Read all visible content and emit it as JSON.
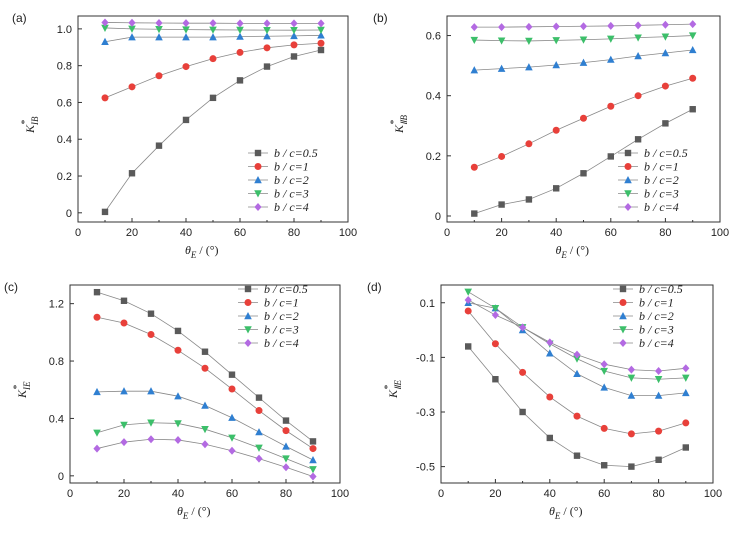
{
  "chart_data": [
    {
      "type": "line",
      "panel_label": "(a)",
      "xlabel": "θE / (°)",
      "xlabel_main": "θ",
      "xlabel_sub": "E",
      "xlabel_unit": " / (°)",
      "ylabel_main": "K",
      "ylabel_sub": "IB",
      "ylabel_sup": "*",
      "xlim": [
        0,
        100
      ],
      "ylim": [
        -0.05,
        1.07
      ],
      "xticks": [
        "0",
        "20",
        "40",
        "60",
        "80",
        "100"
      ],
      "yticks": [
        "0",
        "0.2",
        "0.4",
        "0.6",
        "0.8",
        "1.0"
      ],
      "legend_position": "bottom-right",
      "x": [
        10,
        20,
        30,
        40,
        50,
        60,
        70,
        80,
        90
      ],
      "series": [
        {
          "name": "b / c=0.5",
          "color": "#5a5a5a",
          "marker": "square",
          "values": [
            0.005,
            0.215,
            0.365,
            0.505,
            0.625,
            0.72,
            0.795,
            0.85,
            0.885
          ]
        },
        {
          "name": "b / c=1",
          "color": "#e8403a",
          "marker": "circle",
          "values": [
            0.625,
            0.685,
            0.745,
            0.795,
            0.838,
            0.872,
            0.897,
            0.913,
            0.922
          ]
        },
        {
          "name": "b / c=2",
          "color": "#2f7fd1",
          "marker": "triangle-up",
          "values": [
            0.93,
            0.955,
            0.955,
            0.955,
            0.955,
            0.958,
            0.96,
            0.962,
            0.965
          ]
        },
        {
          "name": "b / c=3",
          "color": "#3cbf6a",
          "marker": "triangle-down",
          "values": [
            1.005,
            1.0,
            0.998,
            0.996,
            0.995,
            0.994,
            0.993,
            0.993,
            0.994
          ]
        },
        {
          "name": "b / c=4",
          "color": "#b36ae2",
          "marker": "diamond",
          "values": [
            1.035,
            1.033,
            1.032,
            1.031,
            1.031,
            1.03,
            1.03,
            1.03,
            1.03
          ]
        }
      ]
    },
    {
      "type": "line",
      "panel_label": "(b)",
      "xlabel_main": "θ",
      "xlabel_sub": "E",
      "xlabel_unit": " / (°)",
      "ylabel_main": "K",
      "ylabel_sub": "ⅡB",
      "ylabel_sup": "*",
      "xlim": [
        0,
        100
      ],
      "ylim": [
        -0.02,
        0.665
      ],
      "xticks": [
        "0",
        "20",
        "40",
        "60",
        "80",
        "100"
      ],
      "yticks": [
        "0",
        "0.2",
        "0.4",
        "0.6"
      ],
      "legend_position": "bottom-right",
      "x": [
        10,
        20,
        30,
        40,
        50,
        60,
        70,
        80,
        90
      ],
      "series": [
        {
          "name": "b / c=0.5",
          "color": "#5a5a5a",
          "marker": "square",
          "values": [
            0.008,
            0.038,
            0.055,
            0.092,
            0.142,
            0.198,
            0.255,
            0.308,
            0.355
          ]
        },
        {
          "name": "b / c=1",
          "color": "#e8403a",
          "marker": "circle",
          "values": [
            0.162,
            0.198,
            0.24,
            0.285,
            0.325,
            0.365,
            0.4,
            0.432,
            0.458
          ]
        },
        {
          "name": "b / c=2",
          "color": "#2f7fd1",
          "marker": "triangle-up",
          "values": [
            0.485,
            0.49,
            0.495,
            0.502,
            0.51,
            0.52,
            0.532,
            0.542,
            0.552
          ]
        },
        {
          "name": "b / c=3",
          "color": "#3cbf6a",
          "marker": "triangle-down",
          "values": [
            0.585,
            0.583,
            0.582,
            0.584,
            0.586,
            0.589,
            0.593,
            0.596,
            0.6
          ]
        },
        {
          "name": "b / c=4",
          "color": "#b36ae2",
          "marker": "diamond",
          "values": [
            0.628,
            0.628,
            0.629,
            0.63,
            0.631,
            0.632,
            0.634,
            0.636,
            0.638
          ]
        }
      ]
    },
    {
      "type": "line",
      "panel_label": "(c)",
      "xlabel_main": "θ",
      "xlabel_sub": "E",
      "xlabel_unit": " / (°)",
      "ylabel_main": "K",
      "ylabel_sub": "IE",
      "ylabel_sup": "*",
      "xlim": [
        0,
        100
      ],
      "ylim": [
        -0.05,
        1.33
      ],
      "xticks": [
        "0",
        "20",
        "40",
        "60",
        "80",
        "100"
      ],
      "yticks": [
        "0",
        "0.4",
        "0.8",
        "1.2"
      ],
      "legend_position": "top-right",
      "x": [
        10,
        20,
        30,
        40,
        50,
        60,
        70,
        80,
        90
      ],
      "series": [
        {
          "name": "b / c=0.5",
          "color": "#5a5a5a",
          "marker": "square",
          "values": [
            1.28,
            1.22,
            1.13,
            1.01,
            0.865,
            0.705,
            0.545,
            0.385,
            0.24
          ]
        },
        {
          "name": "b / c=1",
          "color": "#e8403a",
          "marker": "circle",
          "values": [
            1.105,
            1.065,
            0.985,
            0.875,
            0.75,
            0.605,
            0.455,
            0.315,
            0.19
          ]
        },
        {
          "name": "b / c=2",
          "color": "#2f7fd1",
          "marker": "triangle-up",
          "values": [
            0.585,
            0.59,
            0.59,
            0.555,
            0.49,
            0.405,
            0.305,
            0.205,
            0.11
          ]
        },
        {
          "name": "b / c=3",
          "color": "#3cbf6a",
          "marker": "triangle-down",
          "values": [
            0.3,
            0.355,
            0.37,
            0.365,
            0.325,
            0.265,
            0.195,
            0.12,
            0.045
          ]
        },
        {
          "name": "b / c=4",
          "color": "#b36ae2",
          "marker": "diamond",
          "values": [
            0.19,
            0.235,
            0.255,
            0.25,
            0.22,
            0.175,
            0.12,
            0.06,
            -0.005
          ]
        }
      ]
    },
    {
      "type": "line",
      "panel_label": "(d)",
      "xlabel_main": "θ",
      "xlabel_sub": "E",
      "xlabel_unit": " / (°)",
      "ylabel_main": "K",
      "ylabel_sub": "ⅡE",
      "ylabel_sup": "*",
      "xlim": [
        0,
        100
      ],
      "ylim": [
        -0.56,
        0.165
      ],
      "xticks": [
        "0",
        "20",
        "40",
        "60",
        "80",
        "100"
      ],
      "yticks": [
        "-0.5",
        "-0.3",
        "-0.1",
        "0.1"
      ],
      "legend_position": "top-right",
      "x": [
        10,
        20,
        30,
        40,
        50,
        60,
        70,
        80,
        90
      ],
      "series": [
        {
          "name": "b / c=0.5",
          "color": "#5a5a5a",
          "marker": "square",
          "values": [
            -0.06,
            -0.18,
            -0.3,
            -0.395,
            -0.46,
            -0.495,
            -0.5,
            -0.475,
            -0.43
          ]
        },
        {
          "name": "b / c=1",
          "color": "#e8403a",
          "marker": "circle",
          "values": [
            0.07,
            -0.05,
            -0.155,
            -0.245,
            -0.315,
            -0.36,
            -0.38,
            -0.37,
            -0.34
          ]
        },
        {
          "name": "b / c=2",
          "color": "#2f7fd1",
          "marker": "triangle-up",
          "values": [
            0.1,
            0.08,
            0.0,
            -0.085,
            -0.16,
            -0.21,
            -0.24,
            -0.24,
            -0.23
          ]
        },
        {
          "name": "b / c=3",
          "color": "#3cbf6a",
          "marker": "triangle-down",
          "values": [
            0.14,
            0.08,
            0.01,
            -0.05,
            -0.105,
            -0.15,
            -0.175,
            -0.18,
            -0.175
          ]
        },
        {
          "name": "b / c=4",
          "color": "#b36ae2",
          "marker": "diamond",
          "values": [
            0.11,
            0.055,
            0.01,
            -0.045,
            -0.09,
            -0.125,
            -0.145,
            -0.15,
            -0.14
          ]
        }
      ]
    }
  ]
}
